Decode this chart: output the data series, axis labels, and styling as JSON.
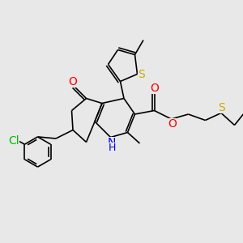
{
  "background_color": "#e8e8e8",
  "bond_color": "#000000",
  "figsize": [
    3.0,
    3.0
  ],
  "dpi": 100,
  "atoms": {
    "Cl": {
      "color": "#00bb00",
      "fontsize": 10
    },
    "O": {
      "color": "#ff0000",
      "fontsize": 10
    },
    "N": {
      "color": "#0000ee",
      "fontsize": 10
    },
    "S": {
      "color": "#ccaa00",
      "fontsize": 10
    },
    "H": {
      "color": "#0000ee",
      "fontsize": 9
    }
  }
}
